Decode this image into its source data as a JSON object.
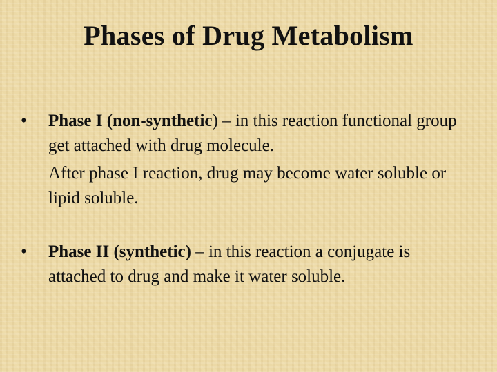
{
  "title": "Phases of Drug Metabolism",
  "bullets": [
    {
      "lead": "Phase I (non-synthetic",
      "text": ") – in this reaction functional group get attached with drug molecule.",
      "extra": "After phase I reaction, drug may become water soluble or lipid soluble."
    },
    {
      "lead": "Phase II (synthetic)",
      "text": " – in this reaction a conjugate is attached to drug and make it water soluble."
    }
  ]
}
